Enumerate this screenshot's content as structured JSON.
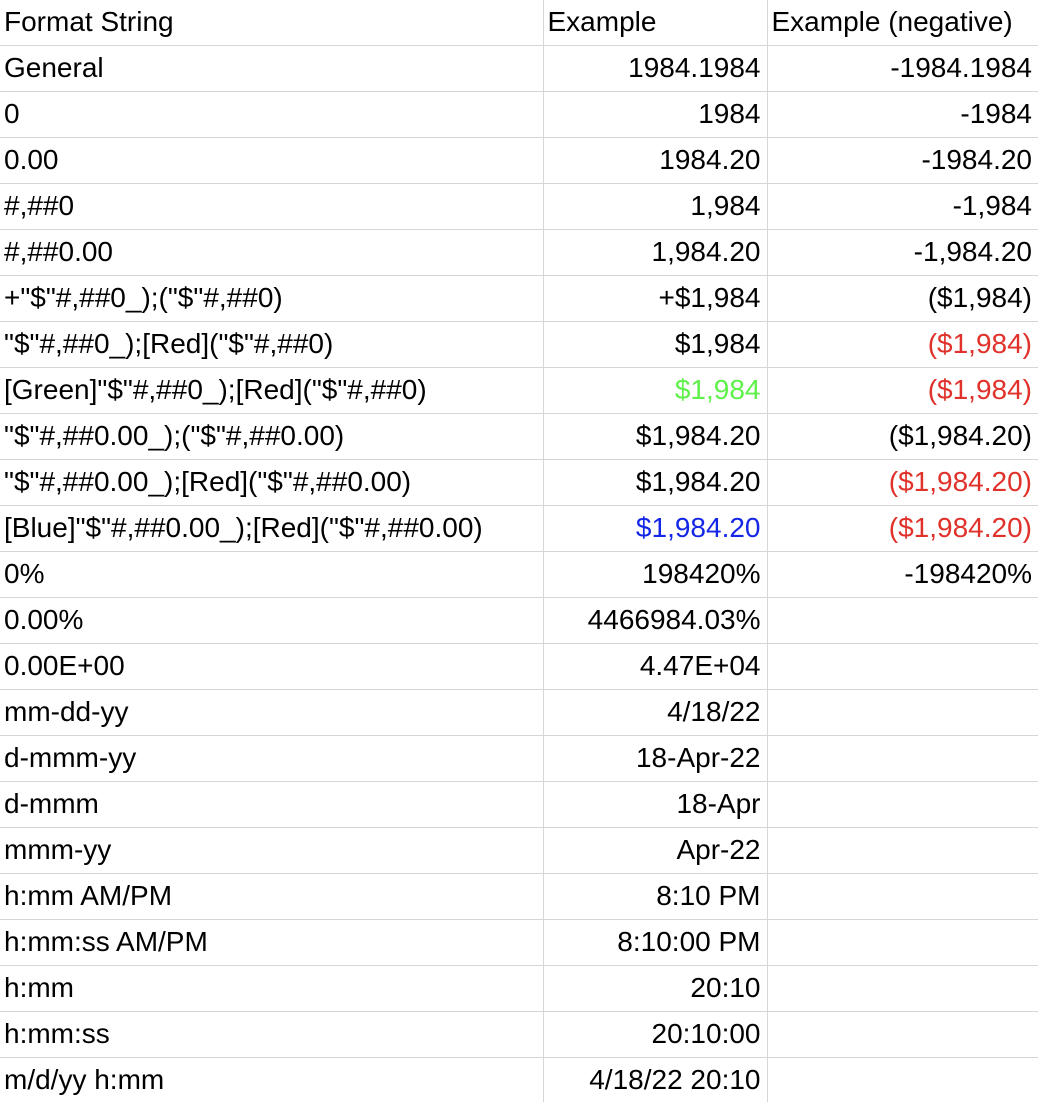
{
  "headers": {
    "format": "Format String",
    "example": "Example",
    "negative": "Example (negative)"
  },
  "colors": {
    "red": "#e0312b",
    "green": "#5ef14a",
    "blue": "#1426e6"
  },
  "rows": [
    {
      "format": "General",
      "example": "1984.1984",
      "negative": "-1984.1984"
    },
    {
      "format": "0",
      "example": "1984",
      "negative": "-1984"
    },
    {
      "format": "0.00",
      "example": "1984.20",
      "negative": "-1984.20"
    },
    {
      "format": "#,##0",
      "example": "1,984",
      "negative": "-1,984"
    },
    {
      "format": "#,##0.00",
      "example": "1,984.20",
      "negative": "-1,984.20"
    },
    {
      "format": "+\"$\"#,##0_);(\"$\"#,##0)",
      "example": "+$1,984",
      "negative": "($1,984)"
    },
    {
      "format": "\"$\"#,##0_);[Red](\"$\"#,##0)",
      "example": "$1,984",
      "negative": "($1,984)"
    },
    {
      "format": "[Green]\"$\"#,##0_);[Red](\"$\"#,##0)",
      "example": "$1,984",
      "negative": "($1,984)"
    },
    {
      "format": "\"$\"#,##0.00_);(\"$\"#,##0.00)",
      "example": "$1,984.20",
      "negative": "($1,984.20)"
    },
    {
      "format": "\"$\"#,##0.00_);[Red](\"$\"#,##0.00)",
      "example": "$1,984.20",
      "negative": "($1,984.20)"
    },
    {
      "format": "[Blue]\"$\"#,##0.00_);[Red](\"$\"#,##0.00)",
      "example": "$1,984.20",
      "negative": "($1,984.20)"
    },
    {
      "format": "0%",
      "example": "198420%",
      "negative": "-198420%"
    },
    {
      "format": "0.00%",
      "example": "4466984.03%",
      "negative": ""
    },
    {
      "format": "0.00E+00",
      "example": "4.47E+04",
      "negative": ""
    },
    {
      "format": "mm-dd-yy",
      "example": "4/18/22",
      "negative": ""
    },
    {
      "format": "d-mmm-yy",
      "example": "18-Apr-22",
      "negative": ""
    },
    {
      "format": "d-mmm",
      "example": "18-Apr",
      "negative": ""
    },
    {
      "format": "mmm-yy",
      "example": "Apr-22",
      "negative": ""
    },
    {
      "format": "h:mm AM/PM",
      "example": "8:10 PM",
      "negative": ""
    },
    {
      "format": "h:mm:ss AM/PM",
      "example": "8:10:00 PM",
      "negative": ""
    },
    {
      "format": "h:mm",
      "example": "20:10",
      "negative": ""
    },
    {
      "format": "h:mm:ss",
      "example": "20:10:00",
      "negative": ""
    },
    {
      "format": "m/d/yy h:mm",
      "example": "4/18/22 20:10",
      "negative": ""
    }
  ]
}
